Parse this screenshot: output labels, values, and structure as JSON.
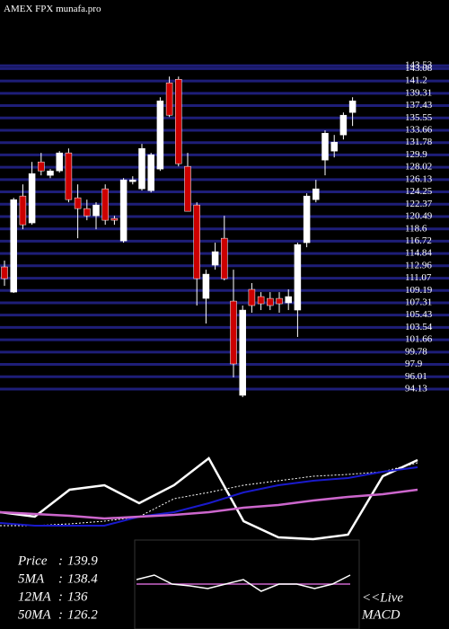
{
  "chart_data": {
    "type": "candlestick",
    "title": "AMEX  FPX  munafa.pro",
    "ylim": [
      92,
      145
    ],
    "yticks": [
      143.53,
      143.08,
      141.2,
      139.31,
      137.43,
      135.55,
      133.66,
      131.78,
      129.9,
      128.02,
      126.13,
      124.25,
      122.37,
      120.49,
      118.6,
      116.72,
      114.84,
      112.96,
      111.07,
      109.19,
      107.31,
      105.43,
      103.54,
      101.66,
      99.78,
      97.9,
      96.01,
      94.13
    ],
    "grid": true,
    "grid_color": "#1e1e78",
    "up_color": "#ffffff",
    "down_color": "#cc0000",
    "open": [
      112.79,
      108.94,
      123.62,
      119.51,
      128.83,
      126.78,
      127.46,
      130.21,
      123.35,
      121.7,
      120.6,
      124.72,
      120.19,
      116.76,
      125.82,
      124.72,
      124.44,
      127.74,
      140.91,
      141.45,
      128.15,
      122.25,
      107.98,
      113.06,
      117.17,
      107.57,
      93.17,
      109.36,
      108.26,
      107.98,
      107.98,
      107.3,
      106.2,
      116.49,
      123.07,
      129.11,
      130.48,
      132.95,
      136.38
    ],
    "high": [
      113.75,
      123.35,
      125.4,
      128.83,
      130.21,
      127.74,
      130.48,
      130.89,
      125.4,
      123.07,
      122.66,
      125.4,
      120.6,
      126.36,
      126.64,
      131.58,
      130.21,
      138.71,
      141.87,
      141.87,
      130.21,
      122.66,
      112.37,
      116.49,
      120.6,
      112.37,
      106.89,
      110.32,
      108.94,
      108.94,
      108.94,
      109.36,
      116.49,
      124.03,
      126.09,
      133.64,
      132.95,
      136.38,
      138.71
    ],
    "low": [
      109.9,
      108.81,
      118.55,
      119.23,
      126.78,
      126.36,
      127.19,
      122.66,
      117.17,
      119.92,
      118.55,
      119.23,
      119.23,
      116.49,
      125.4,
      124.44,
      124.17,
      127.46,
      135.69,
      128.15,
      121.29,
      106.89,
      104.14,
      112.37,
      110.73,
      95.91,
      92.9,
      105.79,
      106.2,
      106.2,
      105.79,
      106.2,
      102.09,
      115.8,
      122.66,
      126.78,
      129.52,
      132.26,
      134.32
    ],
    "close": [
      111.0,
      123.07,
      119.23,
      127.05,
      127.46,
      127.46,
      130.21,
      123.07,
      121.7,
      120.6,
      122.25,
      119.92,
      119.92,
      126.09,
      126.09,
      130.89,
      129.93,
      138.16,
      135.97,
      128.56,
      121.29,
      111.0,
      111.69,
      115.12,
      111.0,
      97.97,
      106.2,
      106.89,
      107.16,
      106.89,
      107.16,
      108.26,
      116.21,
      123.62,
      124.72,
      133.22,
      131.85,
      135.97,
      138.16
    ],
    "lower_panel": {
      "ylim": [
        0,
        100
      ],
      "series": [
        {
          "color": "#ffffff",
          "width": 2.5,
          "values": [
            30,
            25,
            55,
            60,
            40,
            60,
            90,
            20,
            2,
            0,
            5,
            70,
            88
          ]
        },
        {
          "color": "#ffffff",
          "width": 1,
          "dashed": true,
          "values": [
            15,
            15,
            17,
            20,
            25,
            45,
            52,
            60,
            65,
            70,
            72,
            75,
            85
          ]
        },
        {
          "color": "#1a1acc",
          "width": 2,
          "values": [
            18,
            15,
            15,
            15,
            25,
            30,
            40,
            52,
            60,
            65,
            68,
            75,
            80
          ]
        },
        {
          "color": "#cc66cc",
          "width": 2.5,
          "values": [
            30,
            28,
            26,
            23,
            25,
            27,
            30,
            35,
            38,
            43,
            47,
            50,
            55
          ]
        }
      ]
    },
    "macd": {
      "ylim": [
        -10,
        10
      ],
      "series": [
        {
          "color": "#cc66cc",
          "values": [
            0,
            0,
            0,
            0,
            0,
            0,
            0,
            0,
            0,
            0,
            0,
            0,
            0
          ]
        },
        {
          "color": "#ffffff",
          "values": [
            1,
            2,
            0,
            -0.4,
            -1,
            0,
            1,
            -1.6,
            0,
            0,
            -1,
            0,
            2
          ]
        }
      ]
    },
    "info": [
      {
        "label": "Price",
        "value": 139.9
      },
      {
        "label": "5MA",
        "value": 138.4
      },
      {
        "label": "12MA",
        "value": 136
      },
      {
        "label": "50MA",
        "value": 126.2
      }
    ],
    "live": "<<Live",
    "macd_label": "MACD"
  }
}
